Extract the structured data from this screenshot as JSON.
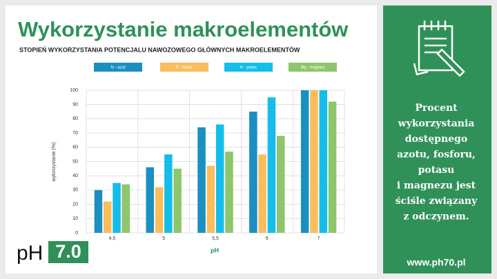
{
  "chart_data": {
    "type": "bar",
    "title": "Wykorzystanie makroelementów",
    "subtitle": "STOPIEŃ WYKORZYSTANIA POTENCJALU NAWOZOWEGO GŁÓWNYCH MAKROELEMENTÓW",
    "x_label": "pH",
    "y_label": "wykorzystanie (%)",
    "categories": [
      "4,5",
      "5",
      "5,5",
      "6",
      "7"
    ],
    "series": [
      {
        "name": "N - azot",
        "color": "#1b8fc1",
        "values": [
          30,
          46,
          74,
          85,
          100
        ]
      },
      {
        "name": "P - fosfor",
        "color": "#fbbd5c",
        "values": [
          22,
          32,
          47,
          55,
          100
        ]
      },
      {
        "name": "K - potas",
        "color": "#14bdea",
        "values": [
          35,
          55,
          76,
          95,
          100
        ]
      },
      {
        "name": "Mg - magnez",
        "color": "#8dc66b",
        "values": [
          34,
          45,
          57,
          68,
          92
        ]
      }
    ],
    "ylim": [
      0,
      100
    ],
    "yticks": [
      0,
      10,
      20,
      30,
      40,
      50,
      60,
      70,
      80,
      90,
      100
    ],
    "grid": true
  },
  "logo": {
    "left": "pH",
    "right": "7.0"
  },
  "panel": {
    "lines": [
      "Procent",
      "wykorzystania",
      "dostępnego",
      "azotu, fosforu,",
      "potasu",
      "i magnezu jest",
      "ściśle związany",
      "z odczynem."
    ],
    "url": "www.ph70.pl"
  }
}
